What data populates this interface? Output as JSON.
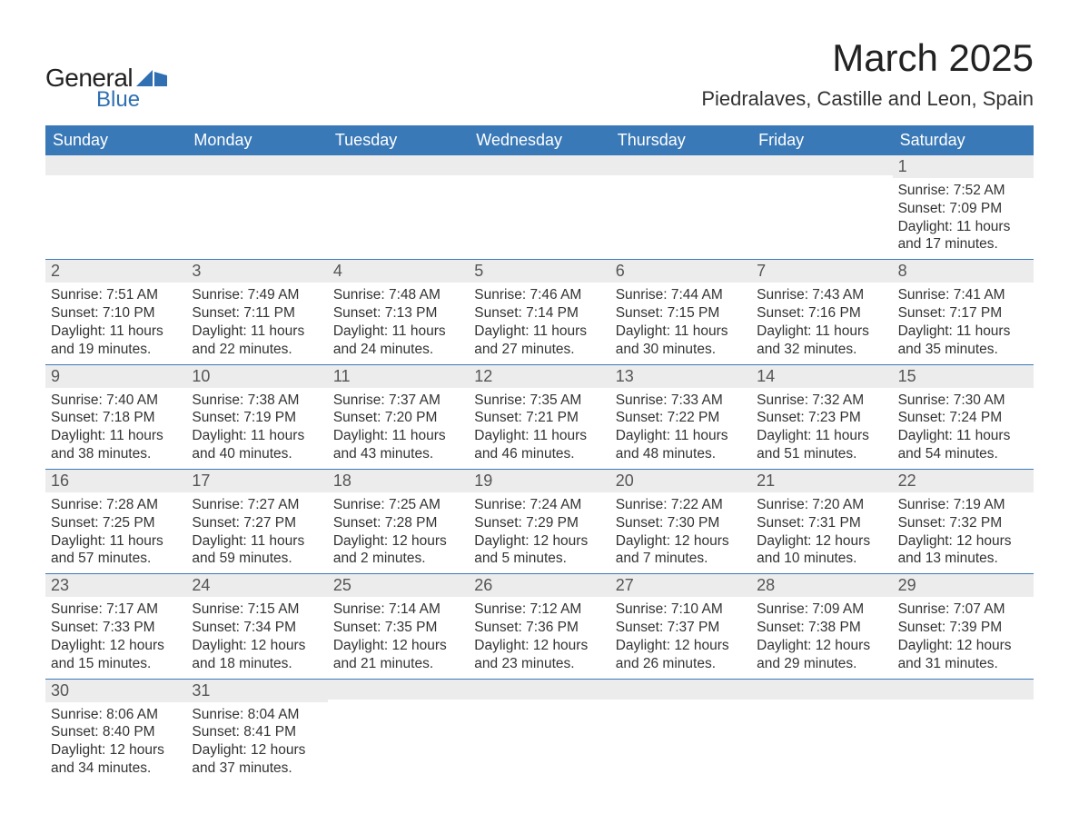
{
  "logo": {
    "text_top": "General",
    "text_bottom": "Blue",
    "shape_color": "#2f6fb2",
    "top_color": "#222222",
    "bottom_color": "#2f6fb2"
  },
  "title": "March 2025",
  "location": "Piedralaves, Castille and Leon, Spain",
  "colors": {
    "header_bg": "#3a79b7",
    "header_text": "#ffffff",
    "daynum_bg": "#ececec",
    "daynum_text": "#555555",
    "body_text": "#333333",
    "week_border": "#3a79b7",
    "page_bg": "#ffffff"
  },
  "typography": {
    "title_fontsize": 42,
    "location_fontsize": 22,
    "dow_fontsize": 18,
    "daynum_fontsize": 18,
    "body_fontsize": 15.5,
    "font_family": "Arial"
  },
  "days_of_week": [
    "Sunday",
    "Monday",
    "Tuesday",
    "Wednesday",
    "Thursday",
    "Friday",
    "Saturday"
  ],
  "calendar": {
    "type": "table",
    "columns": 7,
    "month": "March",
    "year": 2025,
    "first_day_index": 6,
    "weeks": [
      [
        {
          "day": null
        },
        {
          "day": null
        },
        {
          "day": null
        },
        {
          "day": null
        },
        {
          "day": null
        },
        {
          "day": null
        },
        {
          "day": 1,
          "sunrise": "7:52 AM",
          "sunset": "7:09 PM",
          "daylight": "11 hours and 17 minutes."
        }
      ],
      [
        {
          "day": 2,
          "sunrise": "7:51 AM",
          "sunset": "7:10 PM",
          "daylight": "11 hours and 19 minutes."
        },
        {
          "day": 3,
          "sunrise": "7:49 AM",
          "sunset": "7:11 PM",
          "daylight": "11 hours and 22 minutes."
        },
        {
          "day": 4,
          "sunrise": "7:48 AM",
          "sunset": "7:13 PM",
          "daylight": "11 hours and 24 minutes."
        },
        {
          "day": 5,
          "sunrise": "7:46 AM",
          "sunset": "7:14 PM",
          "daylight": "11 hours and 27 minutes."
        },
        {
          "day": 6,
          "sunrise": "7:44 AM",
          "sunset": "7:15 PM",
          "daylight": "11 hours and 30 minutes."
        },
        {
          "day": 7,
          "sunrise": "7:43 AM",
          "sunset": "7:16 PM",
          "daylight": "11 hours and 32 minutes."
        },
        {
          "day": 8,
          "sunrise": "7:41 AM",
          "sunset": "7:17 PM",
          "daylight": "11 hours and 35 minutes."
        }
      ],
      [
        {
          "day": 9,
          "sunrise": "7:40 AM",
          "sunset": "7:18 PM",
          "daylight": "11 hours and 38 minutes."
        },
        {
          "day": 10,
          "sunrise": "7:38 AM",
          "sunset": "7:19 PM",
          "daylight": "11 hours and 40 minutes."
        },
        {
          "day": 11,
          "sunrise": "7:37 AM",
          "sunset": "7:20 PM",
          "daylight": "11 hours and 43 minutes."
        },
        {
          "day": 12,
          "sunrise": "7:35 AM",
          "sunset": "7:21 PM",
          "daylight": "11 hours and 46 minutes."
        },
        {
          "day": 13,
          "sunrise": "7:33 AM",
          "sunset": "7:22 PM",
          "daylight": "11 hours and 48 minutes."
        },
        {
          "day": 14,
          "sunrise": "7:32 AM",
          "sunset": "7:23 PM",
          "daylight": "11 hours and 51 minutes."
        },
        {
          "day": 15,
          "sunrise": "7:30 AM",
          "sunset": "7:24 PM",
          "daylight": "11 hours and 54 minutes."
        }
      ],
      [
        {
          "day": 16,
          "sunrise": "7:28 AM",
          "sunset": "7:25 PM",
          "daylight": "11 hours and 57 minutes."
        },
        {
          "day": 17,
          "sunrise": "7:27 AM",
          "sunset": "7:27 PM",
          "daylight": "11 hours and 59 minutes."
        },
        {
          "day": 18,
          "sunrise": "7:25 AM",
          "sunset": "7:28 PM",
          "daylight": "12 hours and 2 minutes."
        },
        {
          "day": 19,
          "sunrise": "7:24 AM",
          "sunset": "7:29 PM",
          "daylight": "12 hours and 5 minutes."
        },
        {
          "day": 20,
          "sunrise": "7:22 AM",
          "sunset": "7:30 PM",
          "daylight": "12 hours and 7 minutes."
        },
        {
          "day": 21,
          "sunrise": "7:20 AM",
          "sunset": "7:31 PM",
          "daylight": "12 hours and 10 minutes."
        },
        {
          "day": 22,
          "sunrise": "7:19 AM",
          "sunset": "7:32 PM",
          "daylight": "12 hours and 13 minutes."
        }
      ],
      [
        {
          "day": 23,
          "sunrise": "7:17 AM",
          "sunset": "7:33 PM",
          "daylight": "12 hours and 15 minutes."
        },
        {
          "day": 24,
          "sunrise": "7:15 AM",
          "sunset": "7:34 PM",
          "daylight": "12 hours and 18 minutes."
        },
        {
          "day": 25,
          "sunrise": "7:14 AM",
          "sunset": "7:35 PM",
          "daylight": "12 hours and 21 minutes."
        },
        {
          "day": 26,
          "sunrise": "7:12 AM",
          "sunset": "7:36 PM",
          "daylight": "12 hours and 23 minutes."
        },
        {
          "day": 27,
          "sunrise": "7:10 AM",
          "sunset": "7:37 PM",
          "daylight": "12 hours and 26 minutes."
        },
        {
          "day": 28,
          "sunrise": "7:09 AM",
          "sunset": "7:38 PM",
          "daylight": "12 hours and 29 minutes."
        },
        {
          "day": 29,
          "sunrise": "7:07 AM",
          "sunset": "7:39 PM",
          "daylight": "12 hours and 31 minutes."
        }
      ],
      [
        {
          "day": 30,
          "sunrise": "8:06 AM",
          "sunset": "8:40 PM",
          "daylight": "12 hours and 34 minutes."
        },
        {
          "day": 31,
          "sunrise": "8:04 AM",
          "sunset": "8:41 PM",
          "daylight": "12 hours and 37 minutes."
        },
        {
          "day": null
        },
        {
          "day": null
        },
        {
          "day": null
        },
        {
          "day": null
        },
        {
          "day": null
        }
      ]
    ]
  },
  "labels": {
    "sunrise_prefix": "Sunrise: ",
    "sunset_prefix": "Sunset: ",
    "daylight_prefix": "Daylight: "
  }
}
